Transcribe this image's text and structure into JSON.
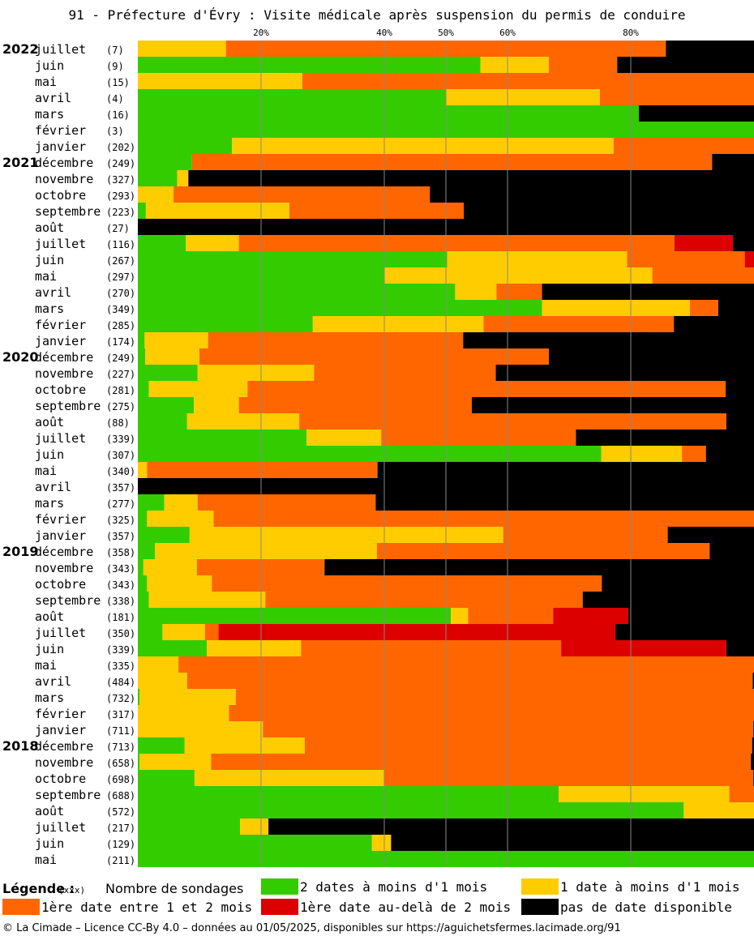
{
  "title": "91 - Préfecture d'Évry : Visite médicale après suspension du permis de conduire",
  "chart_data": {
    "type": "bar",
    "orientation": "horizontal",
    "stacked": true,
    "xlim": [
      0,
      100
    ],
    "x_ticks": [
      "20%",
      "40%",
      "50%",
      "60%",
      "80%"
    ],
    "x_tick_values": [
      20,
      40,
      50,
      60,
      80
    ],
    "series_order": [
      "green",
      "yellow",
      "orange",
      "red",
      "black"
    ],
    "series_colors": {
      "green": "#33cc00",
      "yellow": "#ffcc00",
      "orange": "#ff6600",
      "red": "#dd0000",
      "black": "#000000"
    },
    "rows": [
      {
        "year": "2022",
        "month": "juillet",
        "count": "(7)",
        "v": [
          0,
          14.3,
          71.4,
          0,
          14.3
        ]
      },
      {
        "year": "",
        "month": "juin",
        "count": "(9)",
        "v": [
          55.6,
          11.1,
          11.1,
          0,
          22.2
        ]
      },
      {
        "year": "",
        "month": "mai",
        "count": "(15)",
        "v": [
          0,
          26.7,
          73.3,
          0,
          0
        ]
      },
      {
        "year": "",
        "month": "avril",
        "count": "(4)",
        "v": [
          50,
          25,
          25,
          0,
          0
        ]
      },
      {
        "year": "",
        "month": "mars",
        "count": "(16)",
        "v": [
          81.3,
          0,
          0,
          0,
          18.7
        ]
      },
      {
        "year": "",
        "month": "février",
        "count": "(3)",
        "v": [
          100,
          0,
          0,
          0,
          0
        ]
      },
      {
        "year": "",
        "month": "janvier",
        "count": "(202)",
        "v": [
          15.3,
          61.9,
          22.8,
          0,
          0
        ]
      },
      {
        "year": "2021",
        "month": "décembre",
        "count": "(249)",
        "v": [
          8.8,
          0,
          84.4,
          0,
          6.8
        ]
      },
      {
        "year": "",
        "month": "novembre",
        "count": "(327)",
        "v": [
          6.4,
          1.8,
          0,
          0,
          91.8
        ]
      },
      {
        "year": "",
        "month": "octobre",
        "count": "(293)",
        "v": [
          0,
          5.8,
          41.6,
          0,
          52.6
        ]
      },
      {
        "year": "",
        "month": "septembre",
        "count": "(223)",
        "v": [
          1.3,
          23.3,
          28.3,
          0,
          47.1
        ]
      },
      {
        "year": "",
        "month": "août",
        "count": "(27)",
        "v": [
          0,
          0,
          0,
          0,
          100
        ]
      },
      {
        "year": "",
        "month": "juillet",
        "count": "(116)",
        "v": [
          7.8,
          8.6,
          70.7,
          9.5,
          3.4
        ]
      },
      {
        "year": "",
        "month": "juin",
        "count": "(267)",
        "v": [
          50.2,
          29.2,
          19.1,
          1.5,
          0
        ]
      },
      {
        "year": "",
        "month": "mai",
        "count": "(297)",
        "v": [
          40.1,
          43.4,
          16.5,
          0,
          0
        ]
      },
      {
        "year": "",
        "month": "avril",
        "count": "(270)",
        "v": [
          51.5,
          6.7,
          7.4,
          0,
          34.4
        ]
      },
      {
        "year": "",
        "month": "mars",
        "count": "(349)",
        "v": [
          65.6,
          24,
          4.6,
          0,
          5.8
        ]
      },
      {
        "year": "",
        "month": "février",
        "count": "(285)",
        "v": [
          28.4,
          27.7,
          30.9,
          0,
          13
        ]
      },
      {
        "year": "",
        "month": "janvier",
        "count": "(174)",
        "v": [
          1.1,
          10.3,
          41.4,
          0,
          47.2
        ]
      },
      {
        "year": "2020",
        "month": "décembre",
        "count": "(249)",
        "v": [
          1.2,
          8.8,
          56.7,
          0,
          33.3
        ]
      },
      {
        "year": "",
        "month": "novembre",
        "count": "(227)",
        "v": [
          9.7,
          18.9,
          29.5,
          0,
          41.9
        ]
      },
      {
        "year": "",
        "month": "octobre",
        "count": "(281)",
        "v": [
          1.8,
          16.0,
          77.6,
          0,
          4.6
        ]
      },
      {
        "year": "",
        "month": "septembre",
        "count": "(275)",
        "v": [
          9.1,
          7.3,
          37.8,
          0,
          45.8
        ]
      },
      {
        "year": "",
        "month": "août",
        "count": "(88)",
        "v": [
          8,
          18.2,
          69.3,
          0,
          4.5
        ]
      },
      {
        "year": "",
        "month": "juillet",
        "count": "(339)",
        "v": [
          27.4,
          12.1,
          31.6,
          0,
          28.9
        ]
      },
      {
        "year": "",
        "month": "juin",
        "count": "(307)",
        "v": [
          75.2,
          13.1,
          3.9,
          0,
          7.8
        ]
      },
      {
        "year": "",
        "month": "mai",
        "count": "(340)",
        "v": [
          0,
          1.5,
          37.4,
          0,
          61.1
        ]
      },
      {
        "year": "",
        "month": "avril",
        "count": "(357)",
        "v": [
          0,
          0,
          0,
          0,
          100
        ]
      },
      {
        "year": "",
        "month": "mars",
        "count": "(277)",
        "v": [
          4.3,
          5.4,
          28.9,
          0,
          61.4
        ]
      },
      {
        "year": "",
        "month": "février",
        "count": "(325)",
        "v": [
          1.5,
          10.8,
          87.7,
          0,
          0
        ]
      },
      {
        "year": "",
        "month": "janvier",
        "count": "(357)",
        "v": [
          8.4,
          50.9,
          26.7,
          0,
          14
        ]
      },
      {
        "year": "2019",
        "month": "décembre",
        "count": "(358)",
        "v": [
          2.8,
          36,
          54,
          0,
          7.2
        ]
      },
      {
        "year": "",
        "month": "novembre",
        "count": "(343)",
        "v": [
          0.9,
          8.7,
          20.7,
          0,
          69.7
        ]
      },
      {
        "year": "",
        "month": "octobre",
        "count": "(343)",
        "v": [
          1.5,
          10.5,
          63.3,
          0,
          24.7
        ]
      },
      {
        "year": "",
        "month": "septembre",
        "count": "(338)",
        "v": [
          1.8,
          18.9,
          51.5,
          0,
          27.8
        ]
      },
      {
        "year": "",
        "month": "août",
        "count": "(181)",
        "v": [
          50.8,
          2.8,
          13.8,
          12.2,
          20.4
        ]
      },
      {
        "year": "",
        "month": "juillet",
        "count": "(350)",
        "v": [
          4,
          6.9,
          2.2,
          64.4,
          22.5
        ]
      },
      {
        "year": "",
        "month": "juin",
        "count": "(339)",
        "v": [
          11.2,
          15.3,
          42.2,
          26.8,
          4.5
        ]
      },
      {
        "year": "",
        "month": "mai",
        "count": "(335)",
        "v": [
          0,
          6.6,
          93.4,
          0,
          0
        ]
      },
      {
        "year": "",
        "month": "avril",
        "count": "(484)",
        "v": [
          0,
          8,
          91.8,
          0,
          0.2
        ]
      },
      {
        "year": "",
        "month": "mars",
        "count": "(732)",
        "v": [
          0.3,
          15.6,
          84.1,
          0,
          0
        ]
      },
      {
        "year": "",
        "month": "février",
        "count": "(317)",
        "v": [
          0,
          14.8,
          85.2,
          0,
          0
        ]
      },
      {
        "year": "",
        "month": "janvier",
        "count": "(711)",
        "v": [
          0,
          20.3,
          79.6,
          0,
          0.1
        ]
      },
      {
        "year": "2018",
        "month": "décembre",
        "count": "(713)",
        "v": [
          7.6,
          19.5,
          72.6,
          0,
          0.3
        ]
      },
      {
        "year": "",
        "month": "novembre",
        "count": "(658)",
        "v": [
          0.3,
          11.6,
          87.6,
          0,
          0.5
        ]
      },
      {
        "year": "",
        "month": "octobre",
        "count": "(698)",
        "v": [
          9.2,
          30.8,
          59.9,
          0,
          0.1
        ]
      },
      {
        "year": "",
        "month": "septembre",
        "count": "(688)",
        "v": [
          68.3,
          27.7,
          4,
          0,
          0
        ]
      },
      {
        "year": "",
        "month": "août",
        "count": "(572)",
        "v": [
          88.6,
          11.4,
          0,
          0,
          0
        ]
      },
      {
        "year": "",
        "month": "juillet",
        "count": "(217)",
        "v": [
          16.6,
          4.6,
          0,
          0,
          78.8
        ]
      },
      {
        "year": "",
        "month": "juin",
        "count": "(129)",
        "v": [
          38,
          3.1,
          0,
          0,
          58.9
        ]
      },
      {
        "year": "",
        "month": "mai",
        "count": "(211)",
        "v": [
          100,
          0,
          0,
          0,
          0
        ]
      }
    ]
  },
  "legend": {
    "title": "Légende :",
    "count_marker": "(xxx)",
    "count_text": "Nombre de sondages",
    "items": [
      {
        "key": "green",
        "label": "2 dates à moins d'1 mois",
        "color": "#33cc00"
      },
      {
        "key": "yellow",
        "label": "1 date à moins d'1 mois",
        "color": "#ffcc00"
      },
      {
        "key": "orange",
        "label": "1ère date entre 1 et 2 mois",
        "color": "#ff6600"
      },
      {
        "key": "red",
        "label": "1ère date au-delà de 2 mois",
        "color": "#dd0000"
      },
      {
        "key": "black",
        "label": "pas de date disponible",
        "color": "#000000"
      }
    ]
  },
  "footer": "© La Cimade – Licence CC-By 4.0 – données au 01/05/2025, disponibles sur https://aguichetsfermes.lacimade.org/91"
}
